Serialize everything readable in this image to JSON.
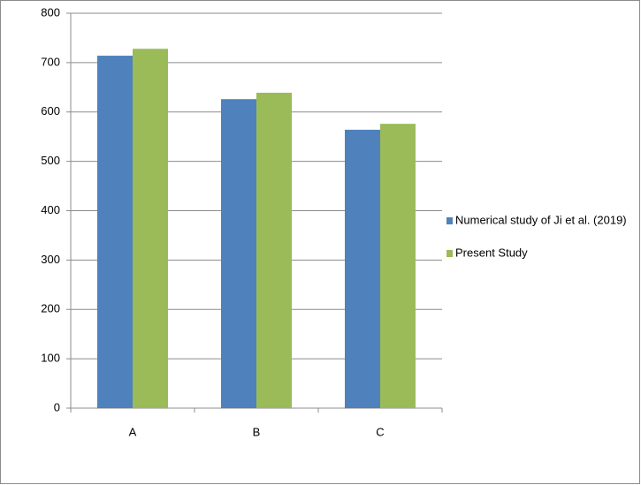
{
  "chart_data": {
    "type": "bar",
    "categories": [
      "A",
      "B",
      "C"
    ],
    "series": [
      {
        "name": "Numerical study of Ji et al. (2019)",
        "color": "#4f81bd",
        "values": [
          714,
          626,
          564
        ]
      },
      {
        "name": "Present Study",
        "color": "#9bbb59",
        "values": [
          728,
          639,
          576
        ]
      }
    ],
    "ylim": [
      0,
      800
    ],
    "yticks": [
      0,
      100,
      200,
      300,
      400,
      500,
      600,
      700,
      800
    ],
    "grid": true,
    "legend": "right"
  }
}
